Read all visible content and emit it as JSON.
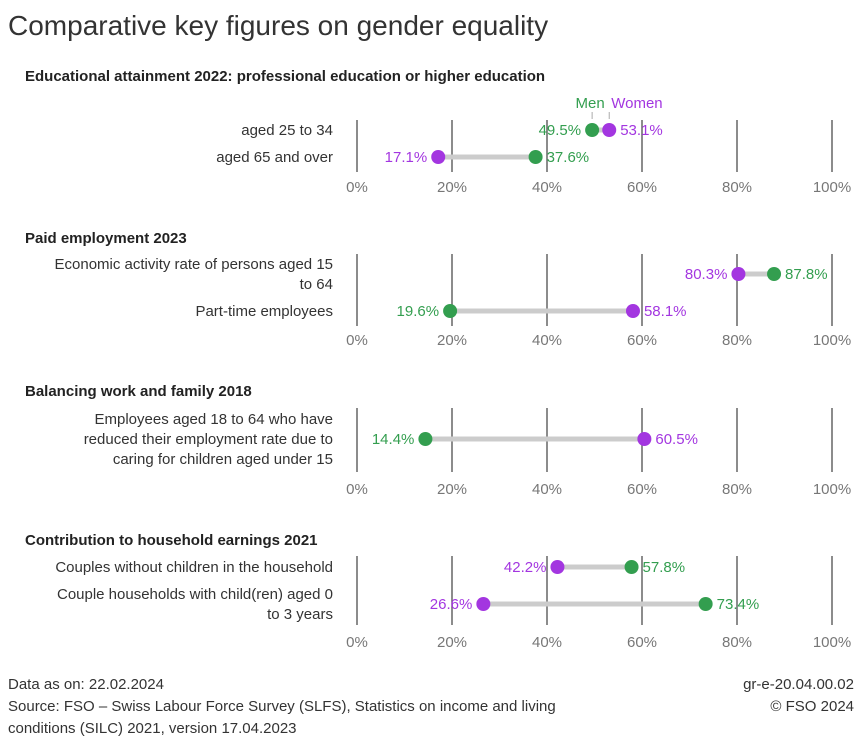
{
  "title": "Comparative key figures on gender equality",
  "colors": {
    "men": "#339E4F",
    "women": "#A336E0",
    "connector": "#CCCCCC",
    "grid": "#666666"
  },
  "legend": {
    "men": "Men",
    "women": "Women"
  },
  "footer": {
    "data_as_on": "Data as on: 22.02.2024",
    "source_lines": [
      "Source: FSO – Swiss Labour Force Survey (SLFS), Statistics on income and living",
      "conditions (SILC) 2021, version 17.04.2023"
    ],
    "code": "gr-e-20.04.00.02",
    "copyright": "© FSO 2024"
  },
  "chart_data": [
    {
      "type": "dumbbell",
      "title": "Educational attainment 2022: professional education or higher education",
      "xlim": [
        0,
        100
      ],
      "ticks": [
        "0%",
        "20%",
        "40%",
        "60%",
        "80%",
        "100%"
      ],
      "grid": true,
      "categories": [
        {
          "label_lines": [
            "aged 25 to 34"
          ],
          "men": 49.5,
          "women": 53.1,
          "men_label": "49.5%",
          "women_label": "53.1%"
        },
        {
          "label_lines": [
            "aged 65 and over"
          ],
          "men": 37.6,
          "women": 17.1,
          "men_label": "37.6%",
          "women_label": "17.1%"
        }
      ]
    },
    {
      "type": "dumbbell",
      "title": "Paid employment 2023",
      "xlim": [
        0,
        100
      ],
      "ticks": [
        "0%",
        "20%",
        "40%",
        "60%",
        "80%",
        "100%"
      ],
      "grid": true,
      "categories": [
        {
          "label_lines": [
            "Economic activity rate of persons aged 15",
            "to 64"
          ],
          "men": 87.8,
          "women": 80.3,
          "men_label": "87.8%",
          "women_label": "80.3%"
        },
        {
          "label_lines": [
            "Part-time employees"
          ],
          "men": 19.6,
          "women": 58.1,
          "men_label": "19.6%",
          "women_label": "58.1%"
        }
      ]
    },
    {
      "type": "dumbbell",
      "title": "Balancing work and family 2018",
      "xlim": [
        0,
        100
      ],
      "ticks": [
        "0%",
        "20%",
        "40%",
        "60%",
        "80%",
        "100%"
      ],
      "grid": true,
      "categories": [
        {
          "label_lines": [
            "Employees aged 18 to 64 who have",
            "reduced their employment rate due to",
            "caring for children aged under 15"
          ],
          "men": 14.4,
          "women": 60.5,
          "men_label": "14.4%",
          "women_label": "60.5%"
        }
      ]
    },
    {
      "type": "dumbbell",
      "title": "Contribution to household earnings 2021",
      "xlim": [
        0,
        100
      ],
      "ticks": [
        "0%",
        "20%",
        "40%",
        "60%",
        "80%",
        "100%"
      ],
      "grid": true,
      "categories": [
        {
          "label_lines": [
            "Couples without children in the household"
          ],
          "men": 57.8,
          "women": 42.2,
          "men_label": "57.8%",
          "women_label": "42.2%"
        },
        {
          "label_lines": [
            "Couple households with child(ren) aged 0",
            "to 3 years"
          ],
          "men": 73.4,
          "women": 26.6,
          "men_label": "73.4%",
          "women_label": "26.6%"
        }
      ]
    }
  ]
}
